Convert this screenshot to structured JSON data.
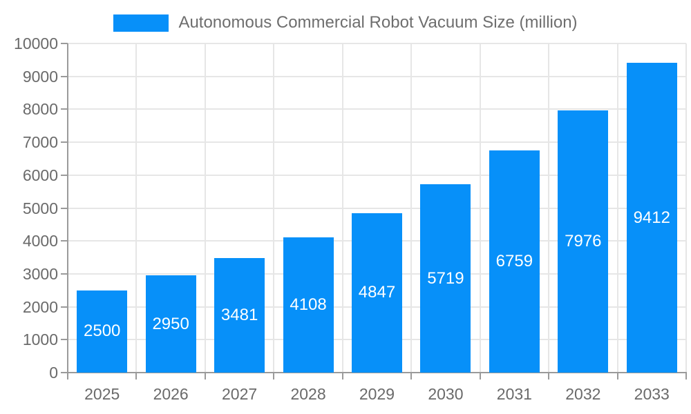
{
  "chart_data": {
    "type": "bar",
    "title": "",
    "legend": "Autonomous Commercial Robot Vacuum Size (million)",
    "legend_position": "top",
    "categories": [
      "2025",
      "2026",
      "2027",
      "2028",
      "2029",
      "2030",
      "2031",
      "2032",
      "2033"
    ],
    "values": [
      2500,
      2950,
      3481,
      4108,
      4847,
      5719,
      6759,
      7976,
      9412
    ],
    "ylim": [
      0,
      10000
    ],
    "ytick_step": 1000,
    "ytick_labels": [
      "0",
      "1000",
      "2000",
      "3000",
      "4000",
      "5000",
      "6000",
      "7000",
      "8000",
      "9000",
      "10000"
    ],
    "grid": true,
    "colors": {
      "bar": "#0790f9",
      "grid_line": "#e6e6e6",
      "axis_line": "#9a9a9a",
      "tick_label": "#6a6a6a",
      "legend_text": "#6e6e6e",
      "bar_label": "#ffffff"
    }
  }
}
